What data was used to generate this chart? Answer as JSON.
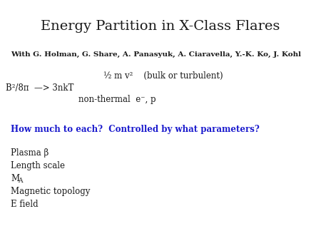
{
  "title": "Energy Partition in X-Class Flares",
  "title_fontsize": 14,
  "collaborators": "With G. Holman, G. Share, A. Panasyuk, A. Ciaravella, Y.-K. Ko, J. Kohl",
  "collab_fontsize": 7.5,
  "line1": "½ m v²    (bulk or turbulent)",
  "line2": "B²/8π  —> 3nkT",
  "line3": "non-thermal  e⁻, p",
  "lines_fontsize": 8.5,
  "question": "How much to each?  Controlled by what parameters?",
  "question_color": "#1a1acd",
  "question_fontsize": 8.5,
  "bullet1": "Plasma β",
  "bullet2": "Length scale",
  "bullet3": "M",
  "bullet3_sub": "A",
  "bullet4": "Magnetic topology",
  "bullet5": "E field",
  "bullets_fontsize": 8.5,
  "bg_color": "#ffffff",
  "text_color": "#1a1a1a"
}
